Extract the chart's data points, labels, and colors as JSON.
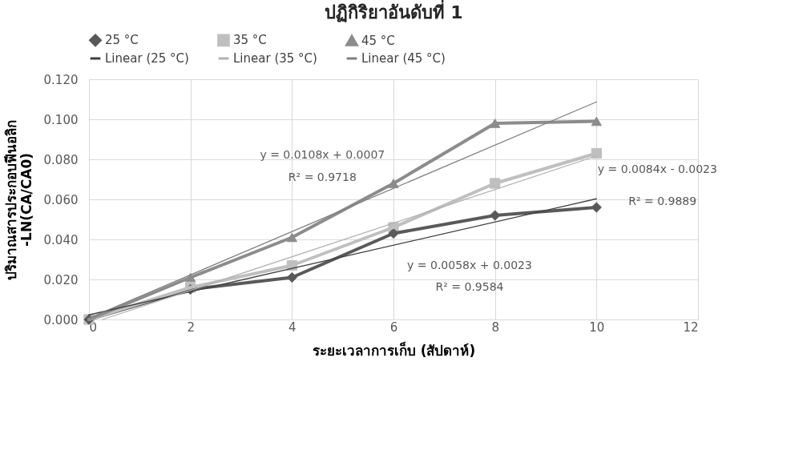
{
  "chart_data": {
    "type": "line",
    "title": "ปฏิกิริยาอันดับที่ 1",
    "xlabel": "ระยะเวลาการเก็บ  (สัปดาห์)",
    "ylabel": "ปริมาณสารประกอบฟีนอลิก\n-LN(CA/CA0)",
    "x": [
      0,
      2,
      4,
      6,
      8,
      10
    ],
    "series": [
      {
        "name": "25 °C",
        "color": "#595959",
        "marker": "diamond",
        "values": [
          0,
          0.015,
          0.021,
          0.043,
          0.052,
          0.056
        ]
      },
      {
        "name": "35 °C",
        "color": "#bfbfbf",
        "marker": "square",
        "values": [
          0,
          0.016,
          0.027,
          0.046,
          0.068,
          0.083
        ]
      },
      {
        "name": "45 °C",
        "color": "#8c8c8c",
        "marker": "triangle",
        "values": [
          0,
          0.021,
          0.041,
          0.068,
          0.098,
          0.099
        ]
      },
      {
        "name": "Linear (25 °C)",
        "color": "#404040",
        "marker": "none",
        "x": [
          0,
          10
        ],
        "values": [
          0.0023,
          0.0603
        ]
      },
      {
        "name": "Linear (35 °C)",
        "color": "#b0b0b0",
        "marker": "none",
        "x": [
          0.27,
          10
        ],
        "values": [
          0,
          0.0817
        ]
      },
      {
        "name": "Linear (45 °C)",
        "color": "#7f7f7f",
        "marker": "none",
        "x": [
          0,
          10
        ],
        "values": [
          0.0007,
          0.1087
        ]
      }
    ],
    "xlim": [
      0,
      12
    ],
    "xticks": [
      0,
      2,
      4,
      6,
      8,
      10,
      12
    ],
    "ylim": [
      0,
      0.12
    ],
    "yticks": [
      {
        "value": 0,
        "label": "0.000"
      },
      {
        "value": 0.02,
        "label": "0.020"
      },
      {
        "value": 0.04,
        "label": "0.040"
      },
      {
        "value": 0.06,
        "label": "0.060"
      },
      {
        "value": 0.08,
        "label": "0.080"
      },
      {
        "value": 0.1,
        "label": "0.100"
      },
      {
        "value": 0.12,
        "label": "0.120"
      }
    ],
    "annotations": [
      "y = 0.0058x + 0.0023",
      "R² = 0.9584",
      "y = 0.0084x - 0.0023",
      "R² = 0.9889",
      "y = 0.0108x + 0.0007",
      "R² = 0.9718"
    ],
    "grid": true,
    "legend": "top",
    "line_style": "solid"
  }
}
